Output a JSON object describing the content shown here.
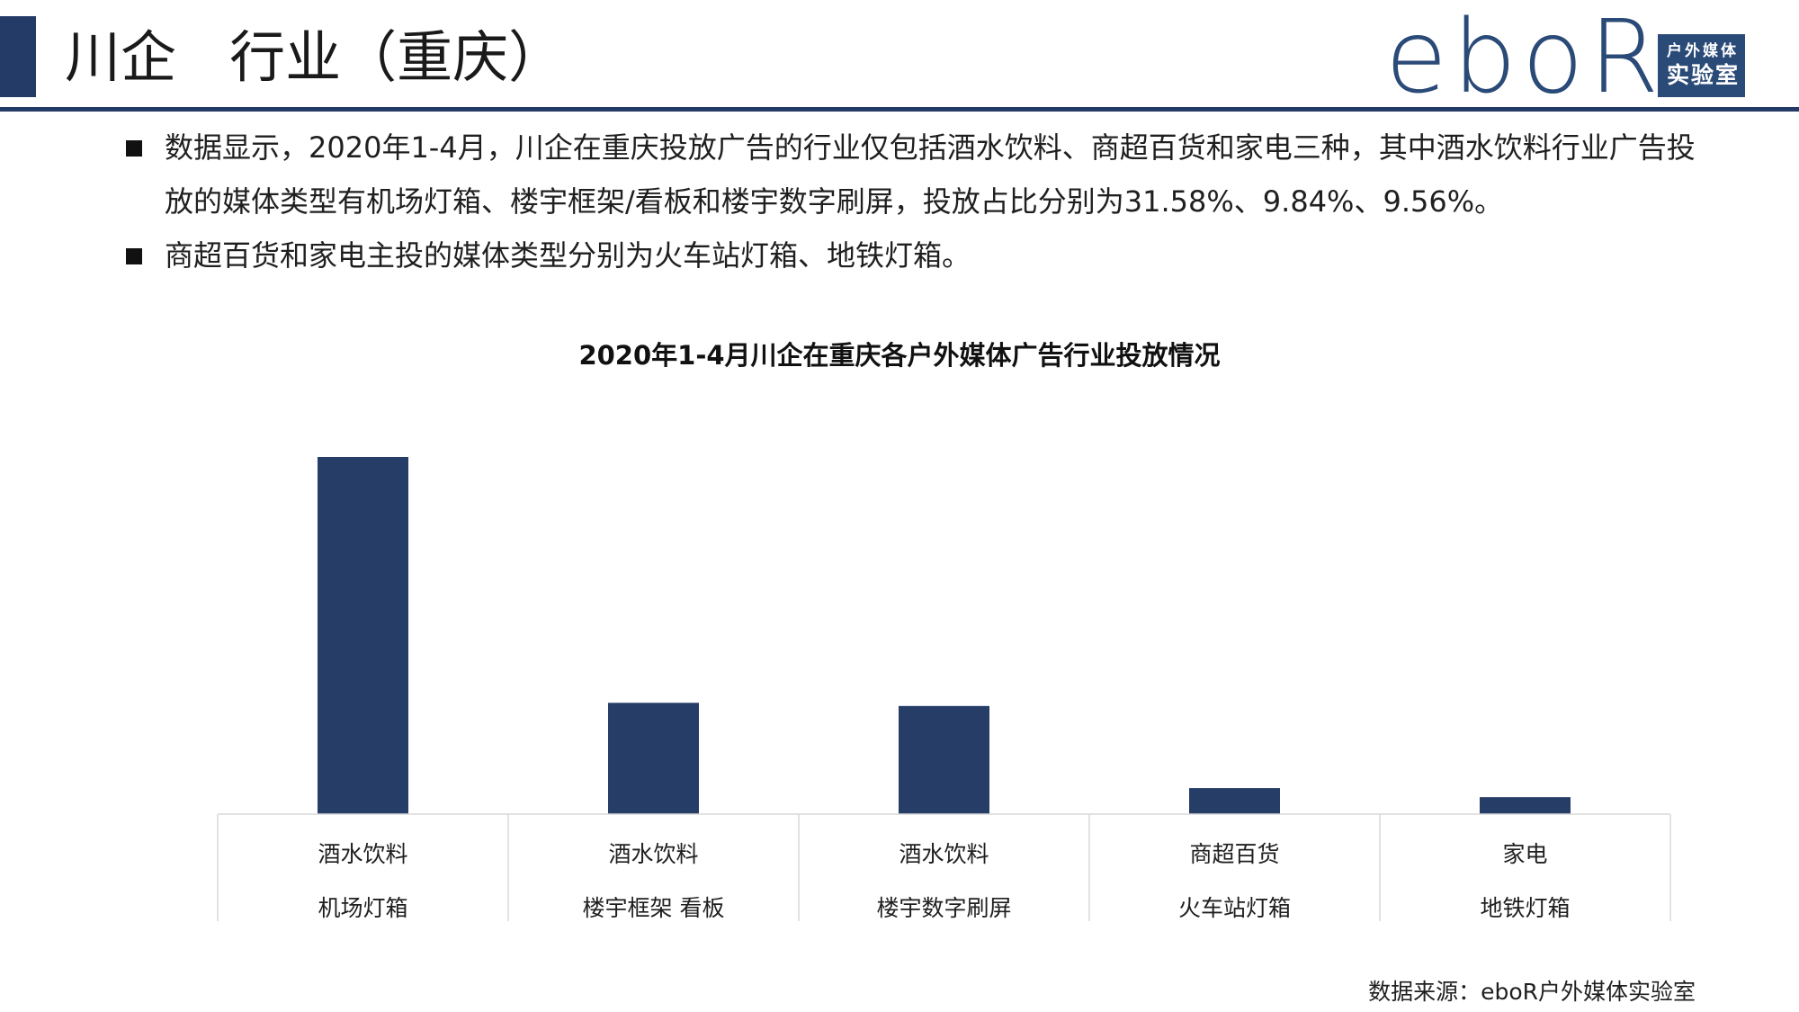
{
  "header": {
    "title": "川企   行业（重庆）",
    "logo_word": "eboR",
    "logo_line1": "户外媒体",
    "logo_line2": "实验室"
  },
  "bullets": [
    "数据显示，2020年1-4月，川企在重庆投放广告的行业仅包括酒水饮料、商超百货和家电三种，其中酒水饮料行业广告投放的媒体类型有机场灯箱、楼宇框架/看板和楼宇数字刷屏，投放占比分别为31.58%、9.84%、9.56%。",
    "商超百货和家电主投的媒体类型分别为火车站灯箱、地铁灯箱。"
  ],
  "chart_data": {
    "type": "bar",
    "title": "2020年1-4月川企在重庆各户外媒体广告行业投放情况",
    "categories": [
      [
        "酒水饮料",
        "机场灯箱"
      ],
      [
        "酒水饮料",
        "楼宇框架 看板"
      ],
      [
        "酒水饮料",
        "楼宇数字刷屏"
      ],
      [
        "商超百货",
        "火车站灯箱"
      ],
      [
        "家电",
        "地铁灯箱"
      ]
    ],
    "values": [
      31.58,
      9.84,
      9.56,
      2.3,
      1.5
    ],
    "ylim": [
      0,
      35
    ],
    "bar_color": "#263d68",
    "grid": false,
    "legend": "none"
  },
  "footer": {
    "source": "数据来源：eboR户外媒体实验室"
  },
  "colors": {
    "accent": "#243a67",
    "bar": "#263d68"
  }
}
